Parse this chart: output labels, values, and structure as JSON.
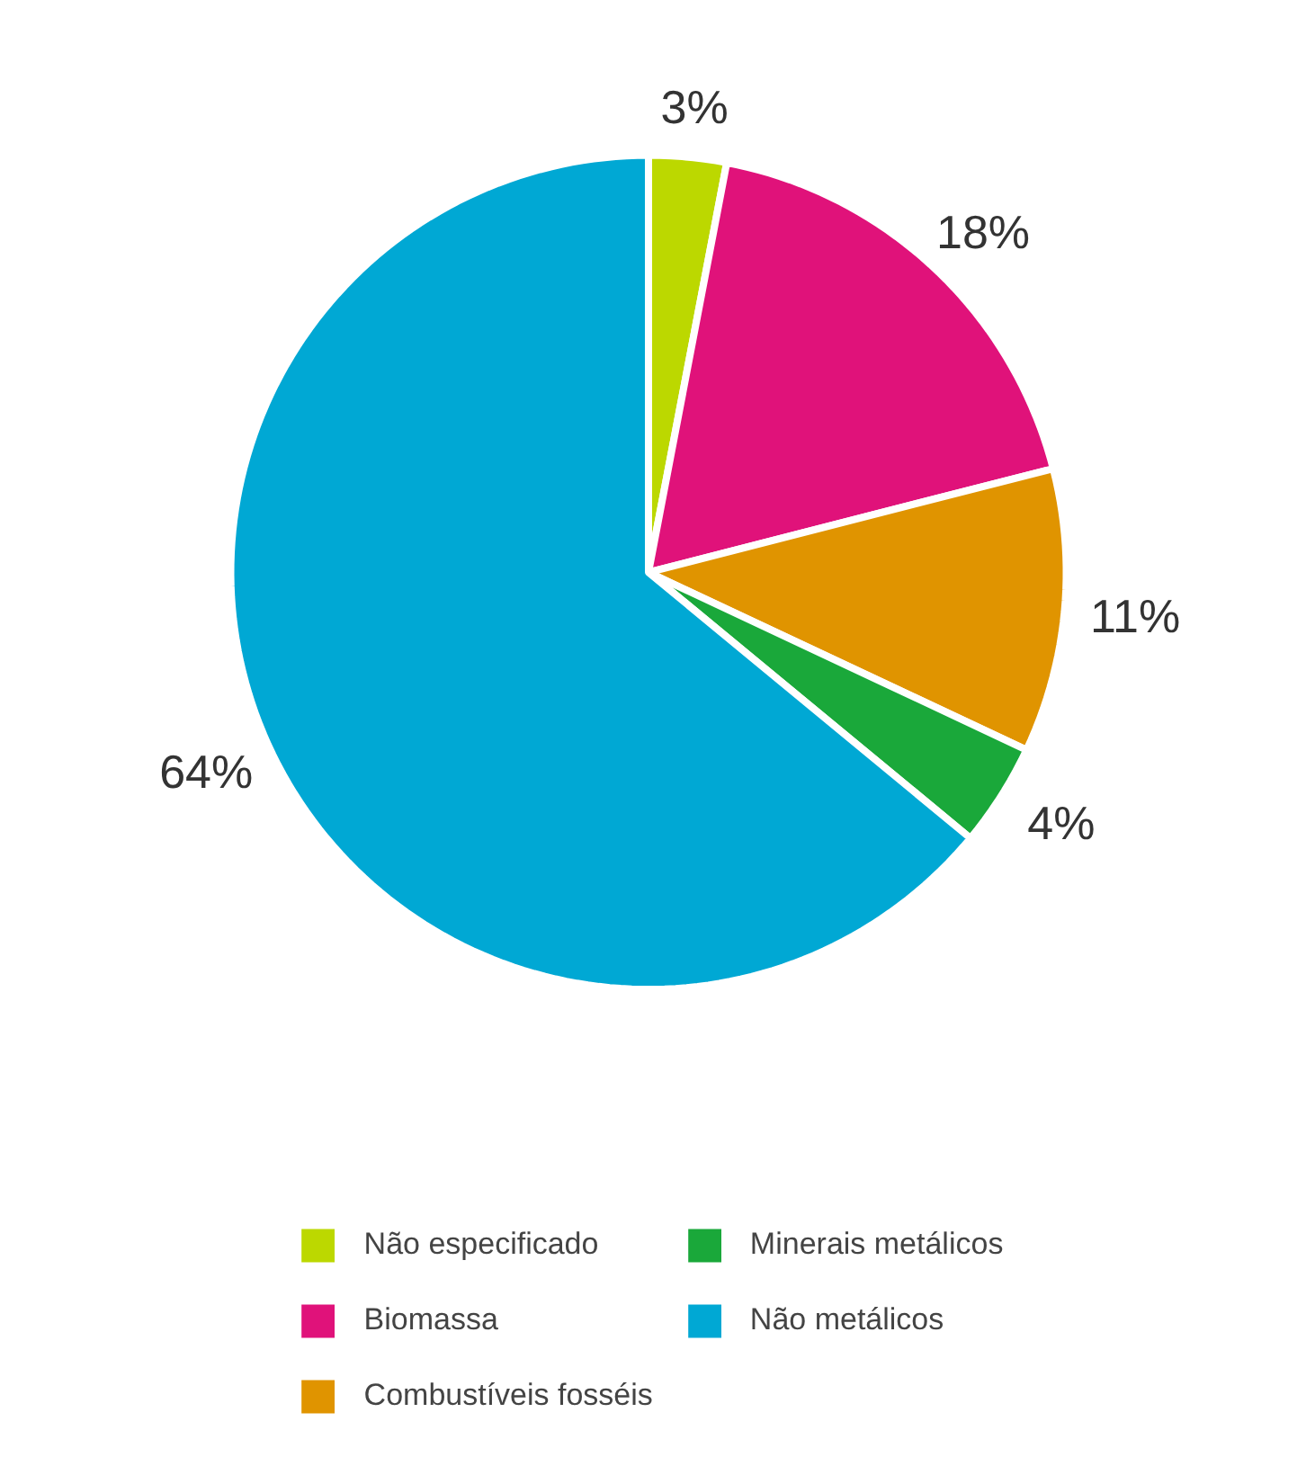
{
  "chart_data": {
    "type": "pie",
    "categories": [
      "Não especificado",
      "Biomassa",
      "Combustíveis fosséis",
      "Minerais metálicos",
      "Não metálicos"
    ],
    "values": [
      3,
      18,
      11,
      4,
      64
    ],
    "colors": [
      "#bcd800",
      "#e0127a",
      "#e09400",
      "#1aa83a",
      "#00a8d4"
    ],
    "value_labels": [
      "3%",
      "18%",
      "11%",
      "4%",
      "64%"
    ],
    "legend": "bottom"
  }
}
